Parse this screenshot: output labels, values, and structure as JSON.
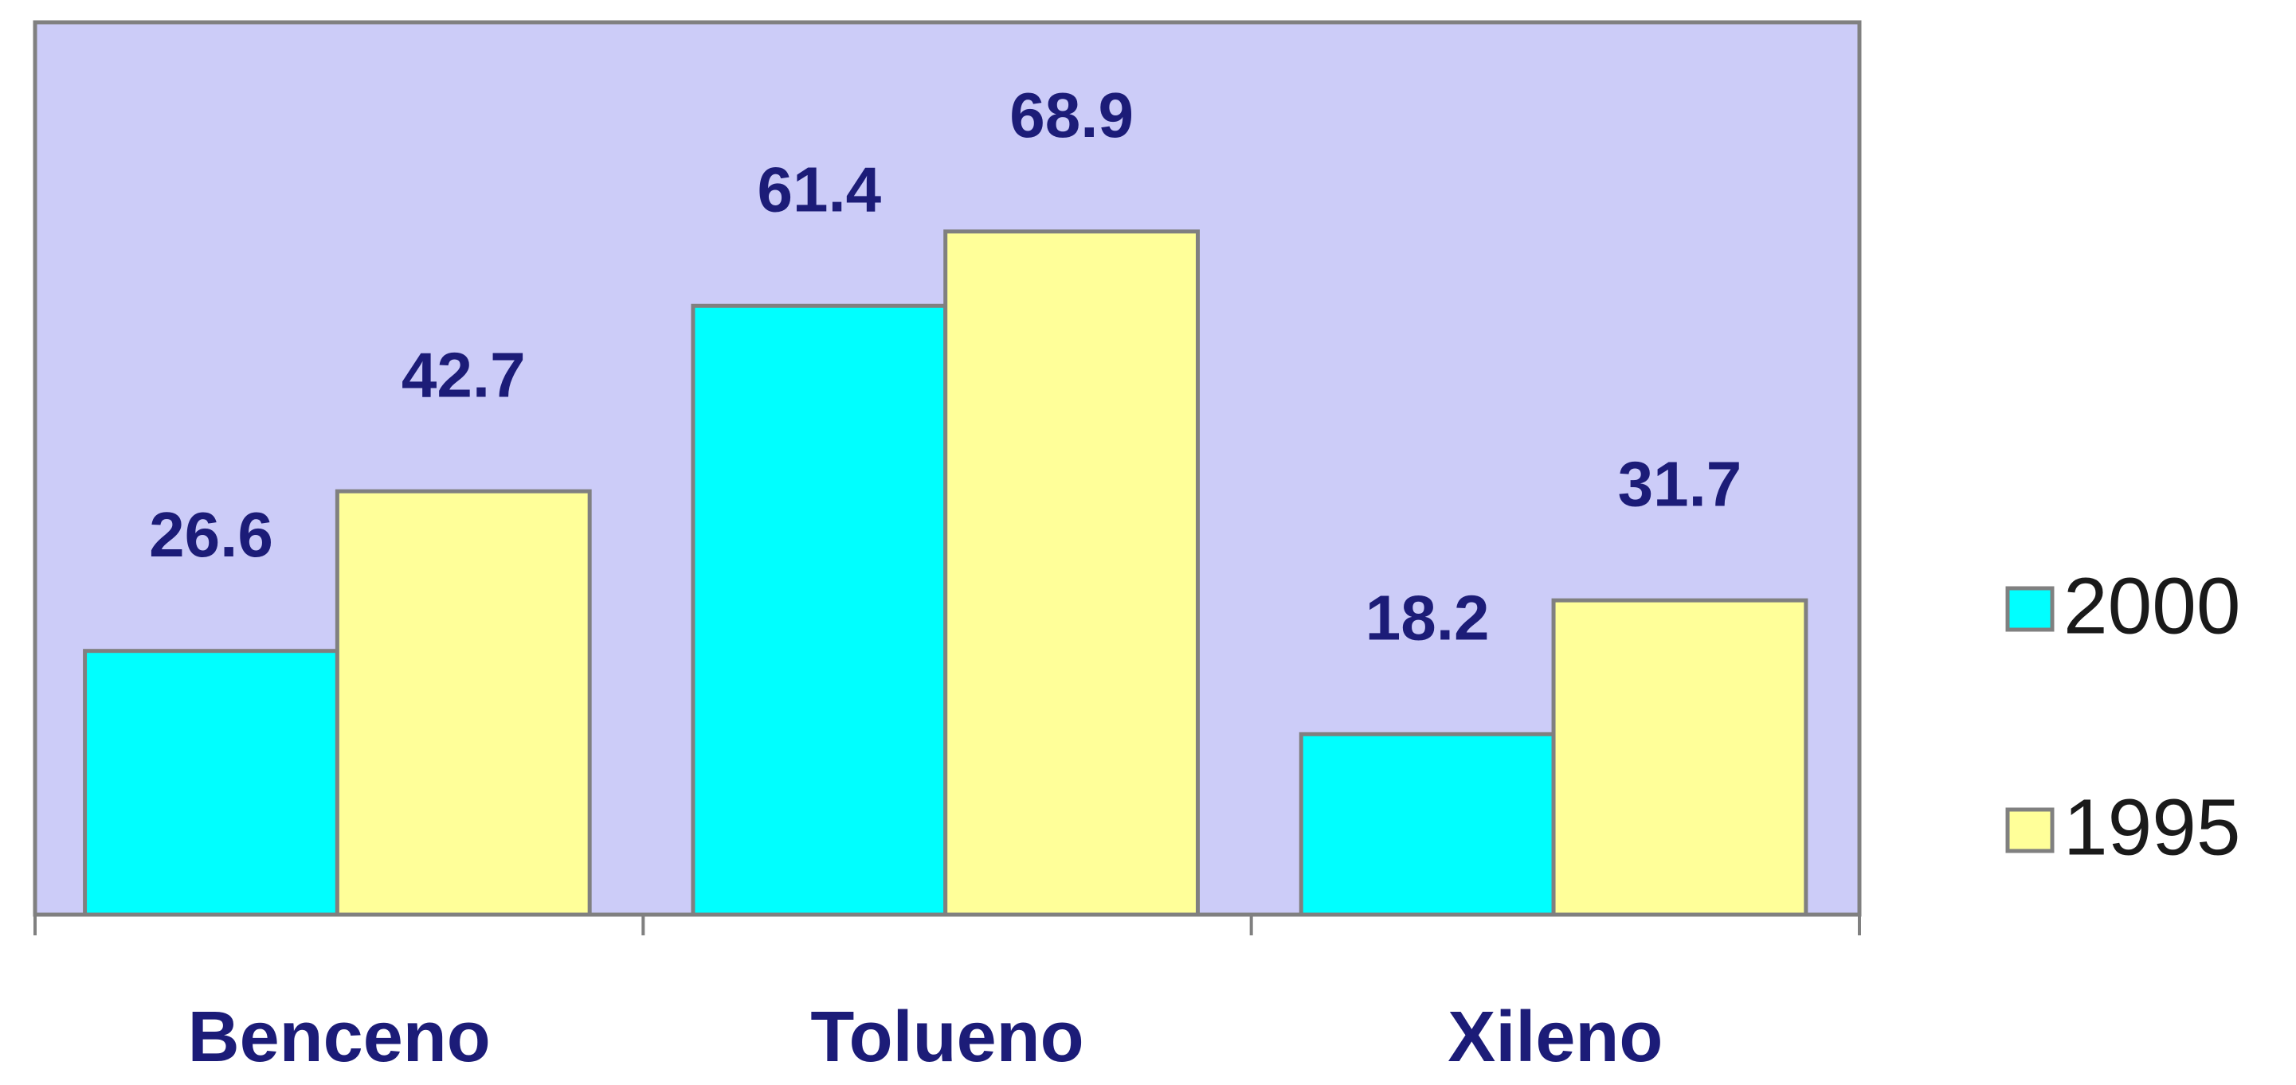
{
  "chart_data": {
    "type": "bar",
    "categories": [
      "Benceno",
      "Tolueno",
      "Xileno"
    ],
    "series": [
      {
        "name": "2000",
        "color": "#00ffff",
        "values": [
          26.6,
          61.4,
          18.2
        ]
      },
      {
        "name": "1995",
        "color": "#ffff99",
        "values": [
          42.7,
          68.9,
          31.7
        ]
      }
    ],
    "ylim": [
      0,
      90
    ],
    "legend": "right",
    "plot_background": "#ccccf8"
  }
}
